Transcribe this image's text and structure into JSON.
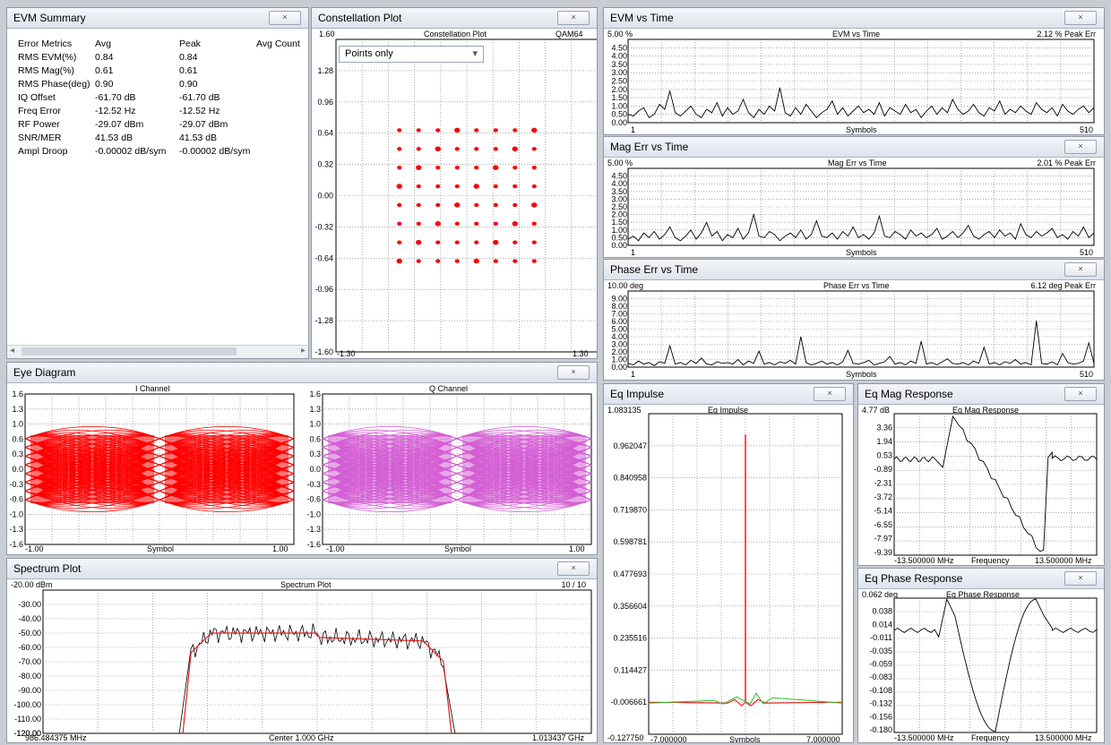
{
  "evm_summary": {
    "title": "EVM Summary",
    "close": "×",
    "headers": [
      "Error Metrics",
      "Avg",
      "Peak",
      "Avg Count"
    ],
    "rows": [
      [
        "RMS EVM(%)",
        "0.84",
        "0.84"
      ],
      [
        "RMS Mag(%)",
        "0.61",
        "0.61"
      ],
      [
        "RMS Phase(deg)",
        "0.90",
        "0.90"
      ],
      [
        "IQ Offset",
        "-61.70 dB",
        "-61.70 dB"
      ],
      [
        "Freq Error",
        "-12.52 Hz",
        "-12.52 Hz"
      ],
      [
        "RF Power",
        "-29.07 dBm",
        "-29.07 dBm"
      ],
      [
        "SNR/MER",
        "41.53 dB",
        "41.53 dB"
      ],
      [
        "Ampl Droop",
        "-0.00002 dB/sym",
        "-0.00002 dB/sym"
      ]
    ],
    "scroll_left": "◂",
    "scroll_right": "▸"
  },
  "constellation": {
    "title": "Constellation Plot",
    "plot_title": "Constellation Plot",
    "modulation": "QAM64",
    "dropdown_value": "Points only",
    "dropdown_arrow": "▾",
    "y_ticks": [
      "1.60",
      "1.28",
      "0.96",
      "0.64",
      "0.32",
      "0.00",
      "-0.32",
      "-0.64",
      "-0.96",
      "-1.28",
      "-1.60"
    ],
    "x_min": "-1.30",
    "x_max": "1.30",
    "point_color": "#ff0000",
    "levels": [
      -7,
      -5,
      -3,
      -1,
      1,
      3,
      5,
      7
    ]
  },
  "evm_time": {
    "title": "EVM vs Time",
    "plot_title": "EVM vs Time",
    "top_left": "5.00 %",
    "top_right": "2.12 % Peak Err",
    "y_ticks": [
      "4.50",
      "4.00",
      "3.50",
      "3.00",
      "2.50",
      "2.00",
      "1.50",
      "1.00",
      "0.50",
      "0.00"
    ],
    "x_min": "1",
    "x_label": "Symbols",
    "x_max": "510",
    "ymax": 5,
    "series": [
      0.5,
      0.4,
      0.7,
      0.9,
      0.3,
      0.5,
      1.1,
      0.8,
      1.9,
      0.6,
      0.4,
      0.7,
      1.0,
      0.5,
      0.3,
      0.8,
      0.6,
      1.2,
      0.4,
      0.9,
      0.5,
      0.7,
      1.4,
      0.6,
      0.3,
      0.8,
      0.5,
      1.0,
      0.7,
      2.1,
      0.6,
      0.4,
      0.9,
      0.5,
      1.1,
      0.7,
      0.3,
      0.6,
      0.8,
      1.3,
      0.5,
      0.9,
      0.4,
      0.7,
      1.0,
      0.6,
      0.8,
      0.5,
      1.2,
      0.4,
      0.9,
      0.7,
      0.5,
      1.1,
      0.6,
      0.8,
      0.3,
      0.7,
      1.0,
      0.5,
      0.9,
      0.6,
      1.4,
      0.8,
      0.5,
      0.7,
      1.1,
      0.6,
      0.4,
      0.9,
      0.7,
      1.3,
      0.5,
      0.8,
      0.6,
      1.0,
      0.7,
      0.5,
      1.2,
      0.8,
      0.6,
      0.9,
      0.4,
      1.1,
      0.7,
      0.5,
      0.8,
      1.0,
      0.6,
      0.9
    ]
  },
  "mag_time": {
    "title": "Mag Err vs Time",
    "plot_title": "Mag Err vs Time",
    "top_left": "5.00 %",
    "top_right": "2.01 % Peak Err",
    "y_ticks": [
      "4.50",
      "4.00",
      "3.50",
      "3.00",
      "2.50",
      "2.00",
      "1.50",
      "1.00",
      "0.50",
      "0.00"
    ],
    "x_min": "1",
    "x_label": "Symbols",
    "x_max": "510",
    "ymax": 5,
    "series": [
      0.4,
      0.6,
      0.3,
      0.8,
      0.5,
      0.9,
      0.4,
      0.7,
      1.2,
      0.5,
      0.3,
      0.6,
      1.0,
      0.4,
      0.8,
      1.5,
      0.6,
      0.9,
      0.3,
      0.7,
      0.5,
      1.1,
      0.4,
      0.8,
      2.0,
      0.6,
      0.5,
      0.9,
      0.7,
      0.3,
      0.6,
      0.8,
      0.5,
      1.0,
      0.4,
      0.7,
      1.6,
      0.6,
      0.5,
      0.8,
      0.4,
      0.9,
      0.6,
      1.2,
      0.5,
      0.7,
      0.4,
      0.8,
      1.9,
      0.6,
      0.5,
      0.9,
      0.7,
      0.4,
      1.0,
      0.6,
      0.8,
      0.5,
      0.7,
      1.1,
      0.4,
      0.6,
      0.9,
      0.5,
      0.8,
      1.3,
      0.6,
      0.4,
      0.7,
      0.9,
      0.5,
      1.0,
      0.6,
      0.8,
      0.4,
      1.4,
      0.7,
      0.5,
      0.9,
      0.6,
      0.8,
      1.1,
      0.5,
      0.7,
      0.4,
      0.9,
      0.6,
      1.2,
      0.5,
      0.8
    ]
  },
  "phase_time": {
    "title": "Phase Err vs Time",
    "plot_title": "Phase Err vs Time",
    "top_left": "10.00 deg",
    "top_right": "6.12 deg Peak Err",
    "y_ticks": [
      "9.00",
      "8.00",
      "7.00",
      "6.00",
      "5.00",
      "4.00",
      "3.00",
      "2.00",
      "1.00",
      "0.00"
    ],
    "x_min": "1",
    "x_label": "Symbols",
    "x_max": "510",
    "ymax": 10,
    "series": [
      0.5,
      0.3,
      0.8,
      0.4,
      0.6,
      0.2,
      0.7,
      0.5,
      2.8,
      0.4,
      0.6,
      0.3,
      0.9,
      0.5,
      1.2,
      0.4,
      0.3,
      0.7,
      0.5,
      0.6,
      0.4,
      1.0,
      0.3,
      0.8,
      0.5,
      2.1,
      0.4,
      0.6,
      0.3,
      0.7,
      0.5,
      0.9,
      0.4,
      4.0,
      0.6,
      0.3,
      0.5,
      0.8,
      0.4,
      0.6,
      0.3,
      0.7,
      2.2,
      0.5,
      0.4,
      0.6,
      0.9,
      0.3,
      0.5,
      0.7,
      1.4,
      0.4,
      0.6,
      0.3,
      0.8,
      0.5,
      3.4,
      0.4,
      0.6,
      0.3,
      0.7,
      1.1,
      0.5,
      0.4,
      0.6,
      0.3,
      0.8,
      0.5,
      2.6,
      0.4,
      0.6,
      0.3,
      0.7,
      0.5,
      1.0,
      0.4,
      0.6,
      0.3,
      6.1,
      0.5,
      0.4,
      0.7,
      0.3,
      1.8,
      0.6,
      0.4,
      0.5,
      0.8,
      3.2,
      0.5
    ]
  },
  "eye": {
    "title": "Eye Diagram",
    "i_title": "I Channel",
    "q_title": "Q Channel",
    "y_ticks": [
      "1.6",
      "1.3",
      "1.0",
      "0.6",
      "0.3",
      "0.0",
      "-0.3",
      "-0.6",
      "-1.0",
      "-1.3",
      "-1.6"
    ],
    "x_min": "-1.00",
    "x_label": "Symbol",
    "x_max": "1.00",
    "i_color": "#ff0000",
    "q_color": "#d45ed4"
  },
  "spectrum": {
    "title": "Spectrum Plot",
    "plot_title": "Spectrum Plot",
    "top_left": "-20.00 dBm",
    "top_right": "10 / 10",
    "y_ticks": [
      "-30.00",
      "-40.00",
      "-50.00",
      "-60.00",
      "-70.00",
      "-80.00",
      "-90.00",
      "-100.00",
      "-110.00",
      "-120.00"
    ],
    "x_min": "986.484375 MHz",
    "x_center": "Center 1.000 GHz",
    "x_max": "1.013437 GHz",
    "avg_color": "#e02020"
  },
  "eq_impulse": {
    "title": "Eq Impulse",
    "plot_title": "Eq Impulse",
    "y_ticks": [
      "1.083135",
      "0.962047",
      "0.840958",
      "0.719870",
      "0.598781",
      "0.477693",
      "0.356604",
      "0.235516",
      "0.114427",
      "-0.006661",
      "-0.127750"
    ],
    "x_min": "-7.000000",
    "x_label": "Symbols",
    "x_max": "7.000000"
  },
  "eq_mag": {
    "title": "Eq Mag Response",
    "plot_title": "Eq Mag Response",
    "top_left": "4.77 dB",
    "y_ticks": [
      "3.36",
      "1.94",
      "0.53",
      "-0.89",
      "-2.31",
      "-3.72",
      "-5.14",
      "-6.55",
      "-7.97",
      "-9.39"
    ],
    "x_min": "-13.500000 MHz",
    "x_label": "Frequency",
    "x_max": "13.500000 MHz"
  },
  "eq_phase": {
    "title": "Eq Phase Response",
    "plot_title": "Eq Phase Response",
    "top_left": "0.062 deg",
    "y_ticks": [
      "0.038",
      "0.014",
      "-0.011",
      "-0.035",
      "-0.059",
      "-0.083",
      "-0.108",
      "-0.132",
      "-0.156",
      "-0.180"
    ],
    "x_min": "-13.500000 MHz",
    "x_label": "Frequency",
    "x_max": "13.500000 MHz"
  }
}
